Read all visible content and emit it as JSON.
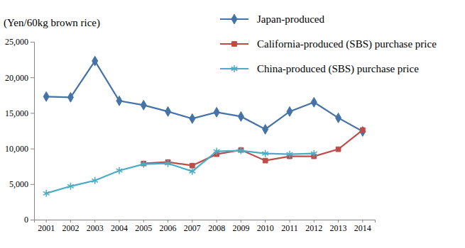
{
  "chart_data": {
    "type": "line",
    "y_label": "(Yen/60kg brown rice)",
    "categories": [
      "2001",
      "2002",
      "2003",
      "2004",
      "2005",
      "2006",
      "2007",
      "2008",
      "2009",
      "2010",
      "2011",
      "2012",
      "2013",
      "2014"
    ],
    "series": [
      {
        "name": "Japan-produced",
        "color": "#4572a7",
        "marker": "diamond",
        "values": [
          17300,
          17200,
          22300,
          16700,
          16100,
          15200,
          14200,
          15100,
          14500,
          12700,
          15200,
          16500,
          14300,
          12400
        ]
      },
      {
        "name": "California-produced (SBS) purchase price",
        "color": "#be4b48",
        "marker": "square",
        "values": [
          null,
          null,
          null,
          null,
          7900,
          8100,
          7600,
          9200,
          9800,
          8300,
          8900,
          8900,
          9900,
          12600
        ]
      },
      {
        "name": "China-produced (SBS) purchase price",
        "color": "#4bacc6",
        "marker": "asterisk",
        "values": [
          3700,
          4700,
          5500,
          6900,
          7800,
          7900,
          6800,
          9600,
          9700,
          9300,
          9200,
          9300,
          null,
          null
        ]
      }
    ],
    "ylim": [
      0,
      25000
    ],
    "yticks": [
      0,
      {
        "value": 5000,
        "label": "5,000"
      },
      {
        "value": 10000,
        "label": "10,000"
      },
      {
        "value": 15000,
        "label": "15,000"
      },
      {
        "value": 20000,
        "label": "20,000"
      },
      {
        "value": 25000,
        "label": "25,000"
      }
    ],
    "grid": false,
    "legend": "top-right"
  }
}
